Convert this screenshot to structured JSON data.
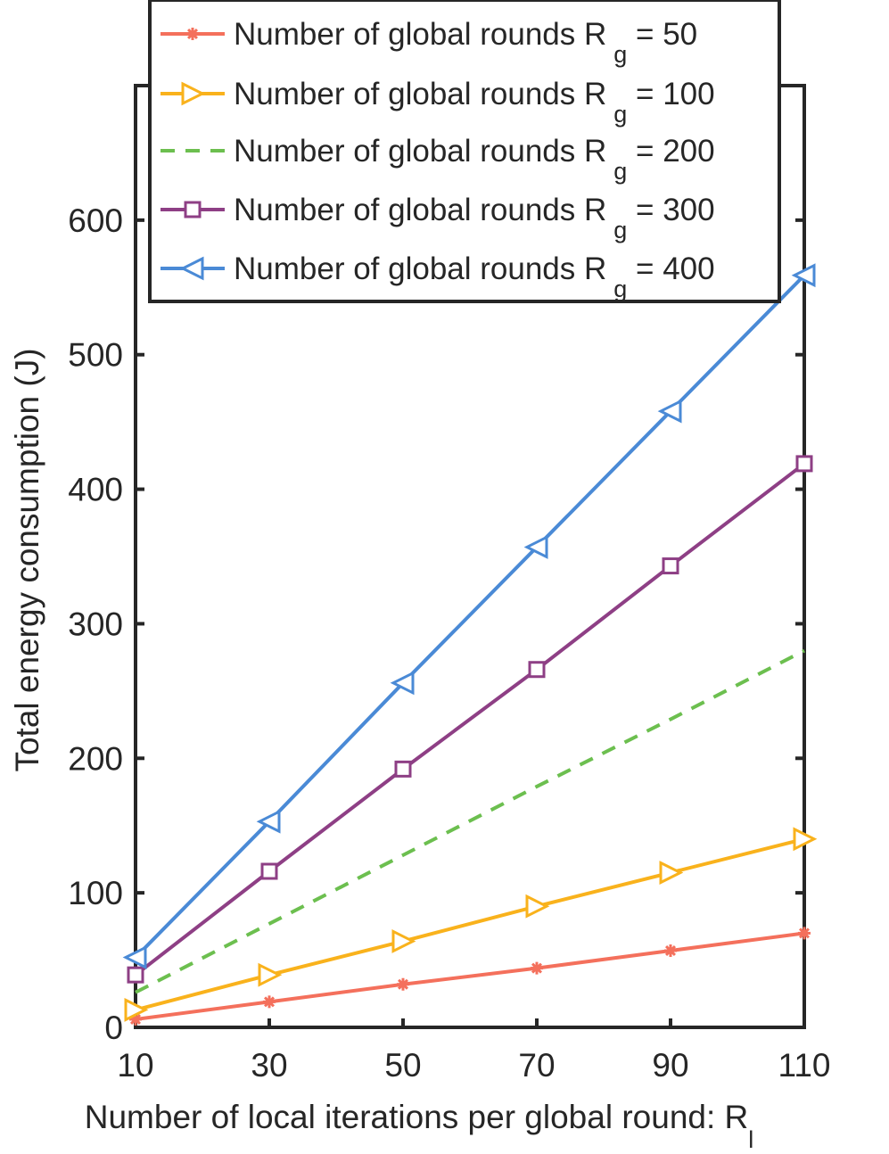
{
  "chart_data": {
    "type": "line",
    "title": "",
    "xlabel": "Number of local iterations per global round: R",
    "xlabel_subscript": "l",
    "ylabel": "Total energy consumption (J)",
    "xlim": [
      10,
      110
    ],
    "ylim": [
      0,
      700
    ],
    "x": [
      10,
      30,
      50,
      70,
      90,
      110
    ],
    "x_ticks": [
      "10",
      "30",
      "50",
      "70",
      "90",
      "110"
    ],
    "y_ticks": [
      "0",
      "100",
      "200",
      "300",
      "400",
      "500",
      "600"
    ],
    "y_tick_values": [
      0,
      100,
      200,
      300,
      400,
      500,
      600
    ],
    "grid": false,
    "legend_position": "top",
    "series": [
      {
        "name": "Number of global rounds R",
        "sub": "g",
        "suffix": " = 50",
        "values": [
          6,
          19,
          32,
          44,
          57,
          70
        ],
        "color": "#f4705c",
        "marker": "asterisk",
        "dash": "solid"
      },
      {
        "name": "Number of global rounds R",
        "sub": "g",
        "suffix": " = 100",
        "values": [
          13,
          39,
          64,
          90,
          115,
          140
        ],
        "color": "#f9b21c",
        "marker": "triangle-right",
        "dash": "solid"
      },
      {
        "name": "Number of global rounds R",
        "sub": "g",
        "suffix": " = 200",
        "values": [
          26,
          77,
          128,
          179,
          229,
          280
        ],
        "color": "#6cbf4f",
        "marker": "none",
        "dash": "dashed"
      },
      {
        "name": "Number of global rounds R",
        "sub": "g",
        "suffix": " = 300",
        "values": [
          39,
          116,
          192,
          266,
          343,
          419
        ],
        "color": "#8e3f85",
        "marker": "square",
        "dash": "solid"
      },
      {
        "name": "Number of global rounds R",
        "sub": "g",
        "suffix": " = 400",
        "values": [
          52,
          153,
          256,
          357,
          458,
          559
        ],
        "color": "#4a8ad6",
        "marker": "triangle-left",
        "dash": "solid"
      }
    ]
  }
}
